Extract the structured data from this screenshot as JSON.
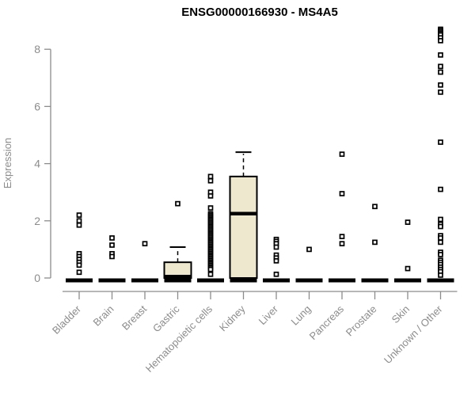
{
  "chart_data": {
    "type": "boxplot",
    "title": "ENSG00000166930 - MS4A5",
    "xlabel": "",
    "ylabel": "Expression",
    "yticks": [
      0,
      2,
      4,
      6,
      8
    ],
    "ylim": [
      0,
      8.8
    ],
    "grid": false,
    "legend": "none",
    "point_style": "open-square",
    "colors": {
      "box_fill": "#ede8ce",
      "box_border": "#000000",
      "median": "#000000",
      "outlier": "#000000",
      "axis": "#8c8c8c",
      "title": "#000000",
      "background": "#ffffff"
    },
    "categories": [
      {
        "label": "Bladder",
        "box": {
          "q1": 0,
          "median": 0,
          "q3": 0,
          "whisker_low": 0,
          "whisker_high": 0
        },
        "outliers": [
          2.2,
          2.0,
          1.85,
          0.85,
          0.75,
          0.65,
          0.55,
          0.45,
          0.2
        ]
      },
      {
        "label": "Brain",
        "box": {
          "q1": 0,
          "median": 0,
          "q3": 0,
          "whisker_low": 0,
          "whisker_high": 0
        },
        "outliers": [
          1.4,
          1.15,
          0.85,
          0.75
        ]
      },
      {
        "label": "Breast",
        "box": {
          "q1": 0,
          "median": 0,
          "q3": 0,
          "whisker_low": 0,
          "whisker_high": 0
        },
        "outliers": [
          1.2
        ]
      },
      {
        "label": "Gastric",
        "box": {
          "q1": 0,
          "median": 0.05,
          "q3": 0.55,
          "whisker_low": 0,
          "whisker_high": 1.08
        },
        "outliers": [
          2.6
        ]
      },
      {
        "label": "Hematopoietic cells",
        "box": {
          "q1": 0,
          "median": 0,
          "q3": 0,
          "whisker_low": 0,
          "whisker_high": 0
        },
        "outliers": [
          3.55,
          3.4,
          3.0,
          2.87,
          2.45,
          2.25,
          2.2,
          2.15,
          2.1,
          2.05,
          2.0,
          1.95,
          1.9,
          1.85,
          1.8,
          1.75,
          1.7,
          1.65,
          1.6,
          1.55,
          1.5,
          1.45,
          1.4,
          1.35,
          1.3,
          1.25,
          1.2,
          1.15,
          1.1,
          1.05,
          1.0,
          0.95,
          0.9,
          0.85,
          0.8,
          0.75,
          0.7,
          0.65,
          0.6,
          0.55,
          0.5,
          0.45,
          0.4,
          0.35,
          0.3,
          0.13
        ]
      },
      {
        "label": "Kidney",
        "box": {
          "q1": 0,
          "median": 2.25,
          "q3": 3.55,
          "whisker_low": 0,
          "whisker_high": 4.4
        },
        "outliers": []
      },
      {
        "label": "Liver",
        "box": {
          "q1": 0,
          "median": 0,
          "q3": 0,
          "whisker_low": 0,
          "whisker_high": 0
        },
        "outliers": [
          1.35,
          1.28,
          1.2,
          1.08,
          0.8,
          0.7,
          0.6,
          0.13
        ]
      },
      {
        "label": "Lung",
        "box": {
          "q1": 0,
          "median": 0,
          "q3": 0,
          "whisker_low": 0,
          "whisker_high": 0
        },
        "outliers": [
          1.0
        ]
      },
      {
        "label": "Pancreas",
        "box": {
          "q1": 0,
          "median": 0,
          "q3": 0,
          "whisker_low": 0,
          "whisker_high": 0
        },
        "outliers": [
          4.33,
          2.95,
          1.45,
          1.2
        ]
      },
      {
        "label": "Prostate",
        "box": {
          "q1": 0,
          "median": 0,
          "q3": 0,
          "whisker_low": 0,
          "whisker_high": 0
        },
        "outliers": [
          2.5,
          1.25
        ]
      },
      {
        "label": "Skin",
        "box": {
          "q1": 0,
          "median": 0,
          "q3": 0,
          "whisker_low": 0,
          "whisker_high": 0
        },
        "outliers": [
          1.95,
          0.33
        ]
      },
      {
        "label": "Unknown / Other",
        "box": {
          "q1": 0,
          "median": 0,
          "q3": 0,
          "whisker_low": 0,
          "whisker_high": 0
        },
        "outliers": [
          8.7,
          8.65,
          8.6,
          8.55,
          8.5,
          8.4,
          8.3,
          7.8,
          7.4,
          7.2,
          6.75,
          6.5,
          4.75,
          3.1,
          2.05,
          1.88,
          1.8,
          1.48,
          1.4,
          1.25,
          0.9,
          0.82,
          0.62,
          0.55,
          0.47,
          0.38,
          0.3,
          0.22,
          0.1
        ]
      }
    ]
  }
}
